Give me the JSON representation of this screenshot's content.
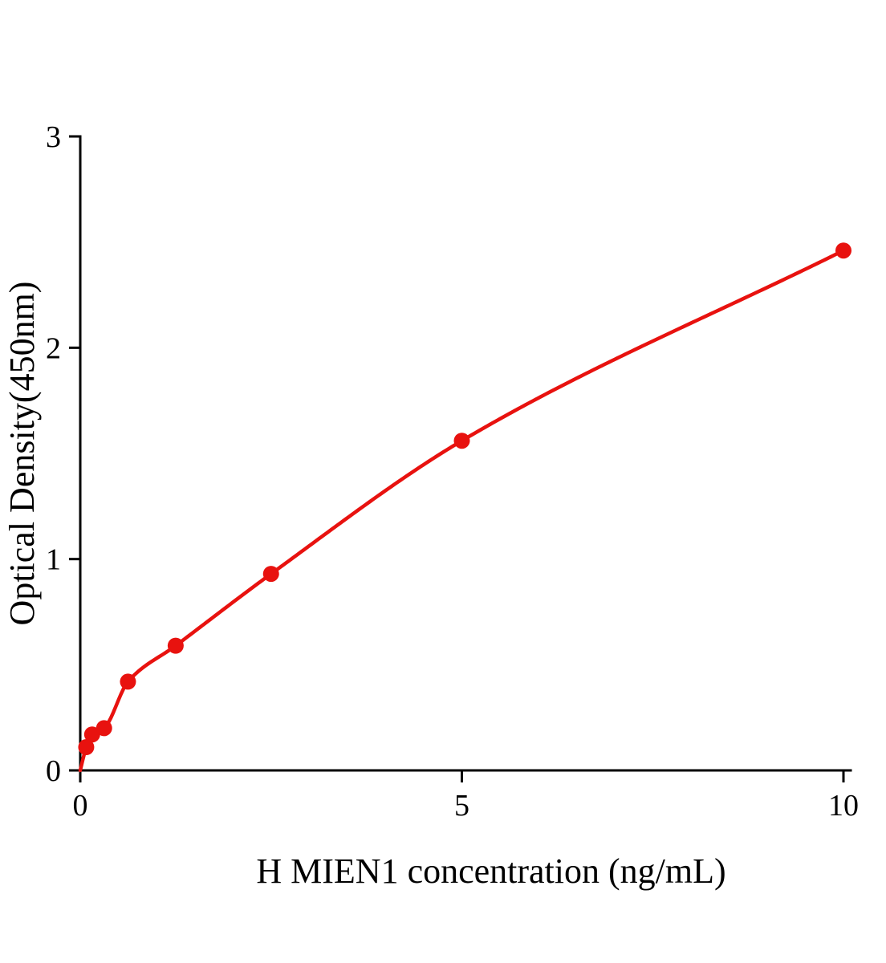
{
  "chart_data": {
    "type": "scatter",
    "title": "",
    "xlabel": "H MIEN1 concentration (ng/mL)",
    "ylabel": "Optical Density(450nm)",
    "x": [
      0.078,
      0.156,
      0.3125,
      0.625,
      1.25,
      2.5,
      5,
      10
    ],
    "y": [
      0.11,
      0.17,
      0.2,
      0.42,
      0.59,
      0.93,
      1.56,
      2.46
    ],
    "curve_through_origin": true,
    "xlim": [
      0,
      10
    ],
    "ylim": [
      0,
      3
    ],
    "xticks": [
      0,
      5,
      10
    ],
    "yticks": [
      0,
      1,
      2,
      3
    ],
    "grid": false,
    "legend": null,
    "line_color": "#e8120f",
    "marker_color": "#e8120f",
    "axis_color": "#000000",
    "background_color": "#ffffff"
  }
}
